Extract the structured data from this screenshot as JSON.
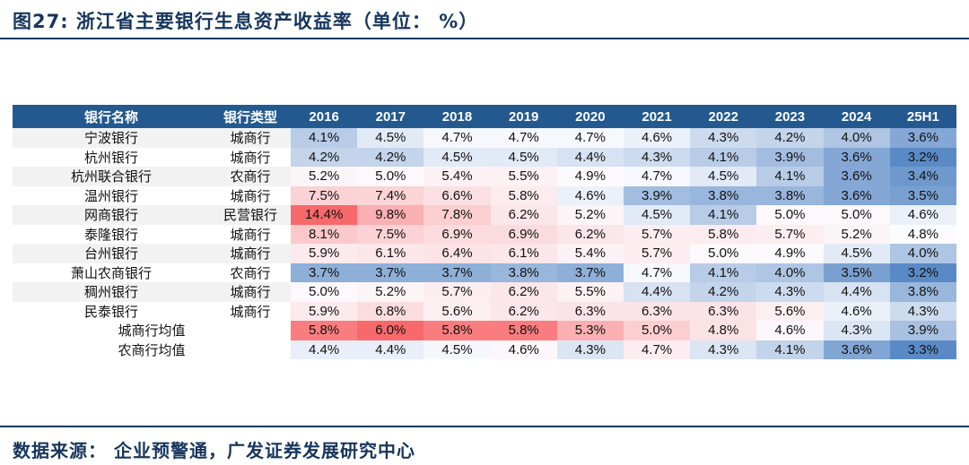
{
  "title": "图27:  浙江省主要银行生息资产收益率（单位：  %）",
  "footer": "数据来源：  企业预警通，广发证券发展研究中心",
  "colors": {
    "title_text": "#17365D",
    "rule": "#17365D",
    "header_bg": "#23598F",
    "header_text": "#FFFFFF",
    "stripe_bg": "#F2F2F2",
    "scale_low": "#5A8AC6",
    "scale_mid": "#FCFCFF",
    "scale_high": "#F8696B"
  },
  "chart_data": {
    "type": "heatmap",
    "title": "浙江省主要银行生息资产收益率",
    "unit": "%",
    "columns": [
      "银行名称",
      "银行类型",
      "2016",
      "2017",
      "2018",
      "2019",
      "2020",
      "2021",
      "2022",
      "2023",
      "2024",
      "25H1"
    ],
    "rows": [
      {
        "name": "宁波银行",
        "type": "城商行",
        "group": "bank",
        "values": [
          4.1,
          4.5,
          4.7,
          4.7,
          4.7,
          4.6,
          4.3,
          4.2,
          4.0,
          3.6
        ]
      },
      {
        "name": "杭州银行",
        "type": "城商行",
        "group": "bank",
        "values": [
          4.2,
          4.2,
          4.5,
          4.5,
          4.4,
          4.3,
          4.1,
          3.9,
          3.6,
          3.2
        ]
      },
      {
        "name": "杭州联合银行",
        "type": "农商行",
        "group": "bank",
        "values": [
          5.2,
          5.0,
          5.4,
          5.5,
          4.9,
          4.7,
          4.5,
          4.1,
          3.6,
          3.4
        ]
      },
      {
        "name": "温州银行",
        "type": "城商行",
        "group": "bank",
        "values": [
          7.5,
          7.4,
          6.6,
          5.8,
          4.6,
          3.9,
          3.8,
          3.8,
          3.6,
          3.5
        ]
      },
      {
        "name": "网商银行",
        "type": "民营银行",
        "group": "bank",
        "values": [
          14.4,
          9.8,
          7.8,
          6.2,
          5.2,
          4.5,
          4.1,
          5.0,
          5.0,
          4.6
        ]
      },
      {
        "name": "泰隆银行",
        "type": "城商行",
        "group": "bank",
        "values": [
          8.1,
          7.5,
          6.9,
          6.9,
          6.2,
          5.7,
          5.8,
          5.7,
          5.2,
          4.8
        ]
      },
      {
        "name": "台州银行",
        "type": "城商行",
        "group": "bank",
        "values": [
          5.9,
          6.1,
          6.4,
          6.1,
          5.4,
          5.7,
          5.0,
          4.9,
          4.5,
          4.0
        ]
      },
      {
        "name": "萧山农商银行",
        "type": "农商行",
        "group": "bank",
        "values": [
          3.7,
          3.7,
          3.7,
          3.8,
          3.7,
          4.7,
          4.1,
          4.0,
          3.5,
          3.2
        ]
      },
      {
        "name": "稠州银行",
        "type": "城商行",
        "group": "bank",
        "values": [
          5.0,
          5.2,
          5.7,
          6.2,
          5.5,
          4.4,
          4.2,
          4.3,
          4.4,
          3.8
        ]
      },
      {
        "name": "民泰银行",
        "type": "城商行",
        "group": "bank",
        "values": [
          5.9,
          6.8,
          5.6,
          6.2,
          6.3,
          6.3,
          6.3,
          5.6,
          4.6,
          4.3
        ]
      },
      {
        "name": "",
        "type": "城商行均值",
        "group": "mean",
        "values": [
          5.8,
          6.0,
          5.8,
          5.8,
          5.3,
          5.0,
          4.8,
          4.6,
          4.3,
          3.9
        ]
      },
      {
        "name": "",
        "type": "农商行均值",
        "group": "mean",
        "values": [
          4.4,
          4.4,
          4.5,
          4.6,
          4.3,
          4.7,
          4.3,
          4.1,
          3.6,
          3.3
        ]
      }
    ],
    "value_format": "percent_1dp",
    "color_scale": {
      "low": "#5A8AC6",
      "mid": "#FCFCFF",
      "high": "#F8696B",
      "bank": {
        "min": 3.2,
        "mid": 4.75,
        "max": 14.4
      },
      "mean": {
        "min": 3.3,
        "mid": 4.55,
        "max": 6.0
      }
    },
    "layout": {
      "legend": "none",
      "grid": false
    }
  }
}
